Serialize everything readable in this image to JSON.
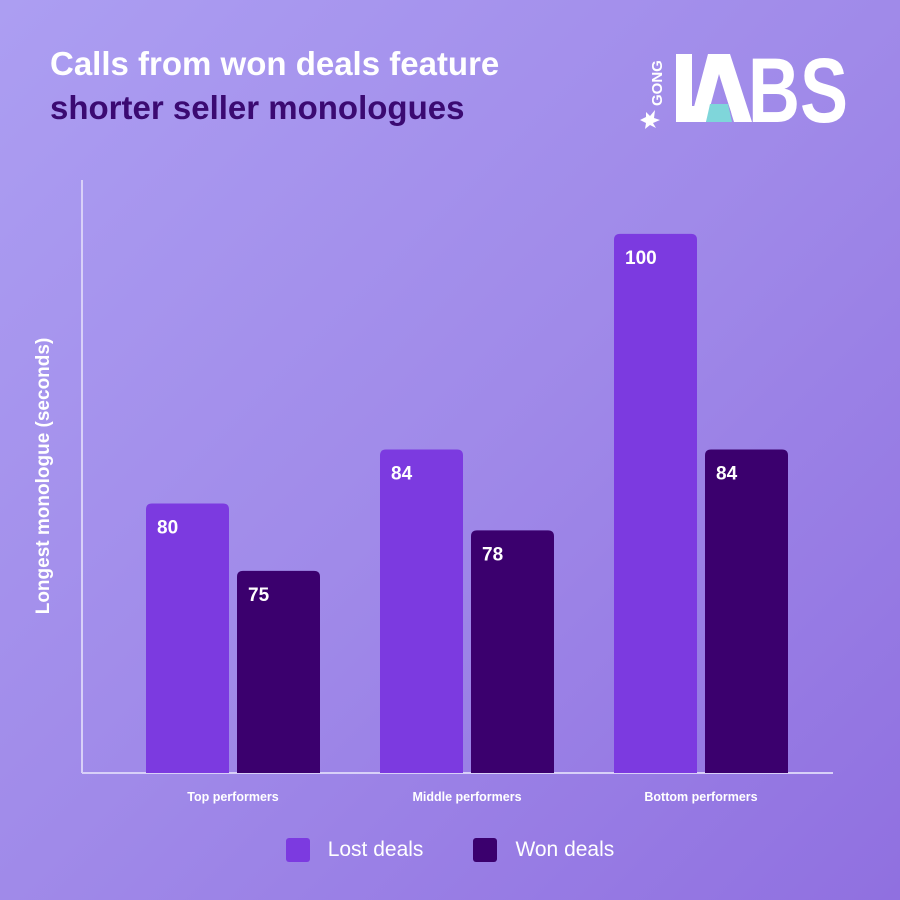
{
  "title": {
    "line1": "Calls from won deals feature",
    "line2": "shorter seller monologues"
  },
  "logo": {
    "small": "GONG",
    "big": "LABS"
  },
  "colors": {
    "lost": "#7c3ae0",
    "won": "#3b006e",
    "axis": "#d8d0f8"
  },
  "chart_data": {
    "type": "bar",
    "title": "Calls from won deals feature shorter seller monologues",
    "ylabel": "Longest monologue (seconds)",
    "xlabel": "",
    "categories": [
      "Top performers",
      "Middle performers",
      "Bottom performers"
    ],
    "series": [
      {
        "name": "Lost deals",
        "values": [
          80,
          84,
          100
        ]
      },
      {
        "name": "Won deals",
        "values": [
          75,
          78,
          84
        ]
      }
    ],
    "ylim": [
      60,
      104
    ],
    "grid": false,
    "legend": "bottom"
  }
}
